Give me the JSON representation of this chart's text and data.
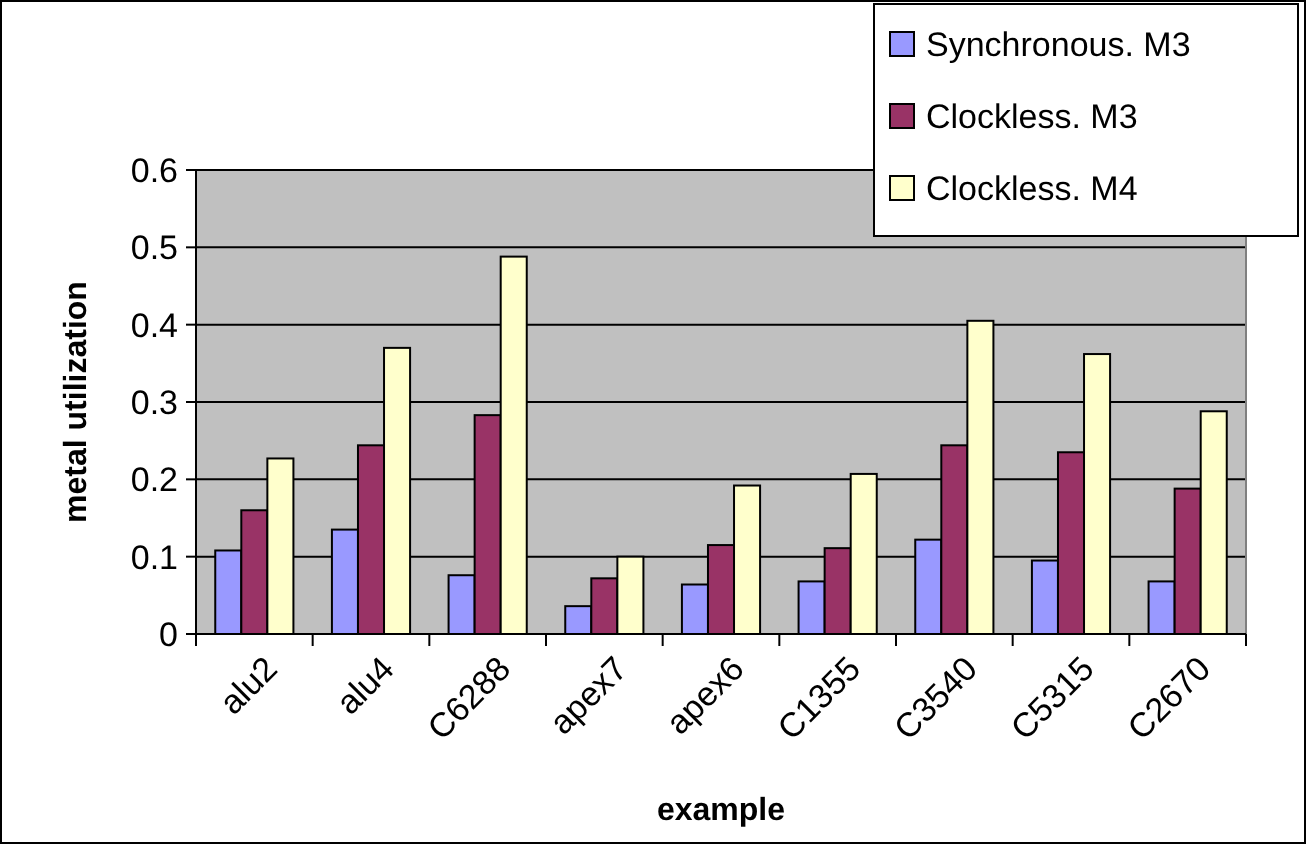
{
  "chart_data": {
    "type": "bar",
    "xlabel": "example",
    "ylabel": "metal utilization",
    "categories": [
      "alu2",
      "alu4",
      "C6288",
      "apex7",
      "apex6",
      "C1355",
      "C3540",
      "C5315",
      "C2670"
    ],
    "series": [
      {
        "name": "Synchronous. M3",
        "color": "#9999ff",
        "values": [
          0.108,
          0.135,
          0.076,
          0.036,
          0.064,
          0.068,
          0.122,
          0.095,
          0.068
        ]
      },
      {
        "name": "Clockless. M3",
        "color": "#993366",
        "values": [
          0.16,
          0.244,
          0.283,
          0.072,
          0.115,
          0.111,
          0.244,
          0.235,
          0.188
        ]
      },
      {
        "name": "Clockless. M4",
        "color": "#ffffcc",
        "values": [
          0.227,
          0.37,
          0.488,
          0.1,
          0.192,
          0.207,
          0.405,
          0.362,
          0.288
        ]
      }
    ],
    "ylim": [
      0,
      0.6
    ],
    "yticks": [
      0,
      0.1,
      0.2,
      0.3,
      0.4,
      0.5,
      0.6
    ],
    "grid": "y",
    "legend": "top right"
  }
}
